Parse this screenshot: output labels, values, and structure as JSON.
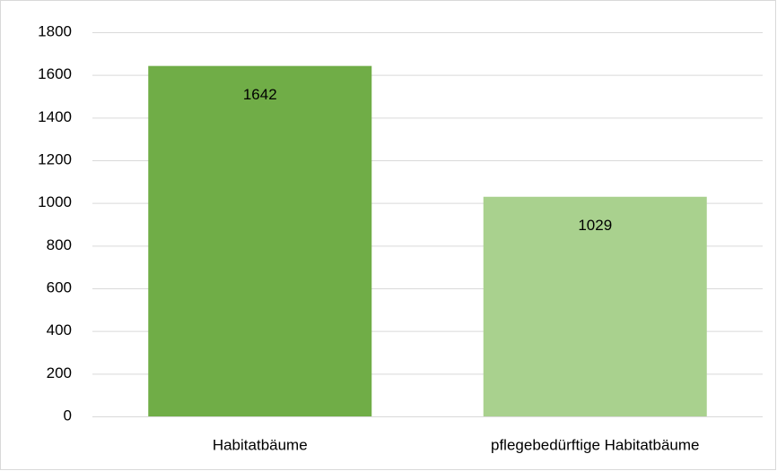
{
  "chart_data": {
    "type": "bar",
    "categories": [
      "Habitatbäume",
      "pflegebedürftige Habitatbäume"
    ],
    "values": [
      1642,
      1029
    ],
    "colors": [
      "#70ad47",
      "#a9d18e"
    ],
    "ylim": [
      0,
      1800
    ],
    "yticks": [
      0,
      200,
      400,
      600,
      800,
      1000,
      1200,
      1400,
      1600,
      1800
    ],
    "grid": true,
    "data_labels": true
  }
}
